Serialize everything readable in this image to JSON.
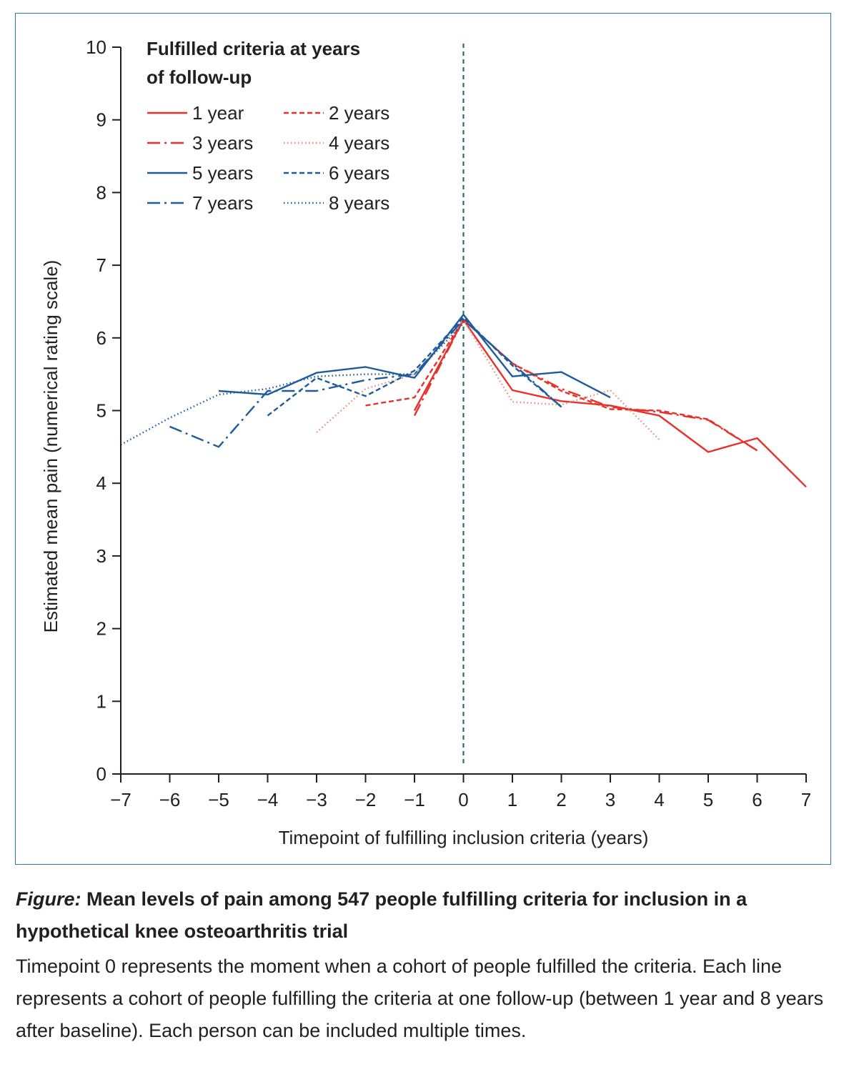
{
  "chart_data": {
    "type": "line",
    "ylabel": "Estimated mean pain (numerical rating scale)",
    "xlabel": "Timepoint of fulfilling inclusion criteria (years)",
    "xlim": [
      -7,
      7
    ],
    "ylim": [
      0,
      10
    ],
    "x_ticks": [
      "−7",
      "−6",
      "−5",
      "−4",
      "−3",
      "−2",
      "−1",
      "0",
      "1",
      "2",
      "3",
      "4",
      "5",
      "6",
      "7"
    ],
    "y_ticks": [
      "0",
      "1",
      "2",
      "3",
      "4",
      "5",
      "6",
      "7",
      "8",
      "9",
      "10"
    ],
    "reference_line": {
      "x": 0,
      "color": "#2d6a73"
    },
    "legend": {
      "title": "Fulfilled criteria at years of follow-up",
      "title_line1": "Fulfilled criteria at years",
      "title_line2": "of follow-up",
      "position": "top-left"
    },
    "series": [
      {
        "name": "1 year",
        "color": "#e8312a",
        "style": "solid",
        "points": [
          [
            -1,
            5.0
          ],
          [
            0,
            6.25
          ],
          [
            1,
            5.28
          ],
          [
            2,
            5.13
          ],
          [
            3,
            5.07
          ],
          [
            4,
            4.93
          ],
          [
            5,
            4.43
          ],
          [
            6,
            4.62
          ],
          [
            7,
            3.95
          ]
        ]
      },
      {
        "name": "2 years",
        "color": "#e8312a",
        "style": "dashed",
        "points": [
          [
            -2,
            5.07
          ],
          [
            -1,
            5.18
          ],
          [
            0,
            6.25
          ],
          [
            1,
            5.65
          ],
          [
            2,
            5.27
          ],
          [
            3,
            5.02
          ],
          [
            4,
            5.0
          ],
          [
            5,
            4.88
          ],
          [
            6,
            4.45
          ]
        ]
      },
      {
        "name": "3 years",
        "color": "#e8312a",
        "style": "dashdot",
        "points": [
          [
            -1,
            4.93
          ],
          [
            0,
            6.25
          ],
          [
            1,
            5.65
          ],
          [
            2,
            5.3
          ],
          [
            3,
            5.05
          ],
          [
            4,
            4.98
          ],
          [
            5,
            4.87
          ],
          [
            6,
            4.45
          ]
        ]
      },
      {
        "name": "4 years",
        "color": "#f08878",
        "style": "dotted",
        "points": [
          [
            -3,
            4.7
          ],
          [
            -2,
            5.3
          ],
          [
            -1,
            5.5
          ],
          [
            0,
            6.25
          ],
          [
            1,
            5.12
          ],
          [
            2,
            5.08
          ],
          [
            3,
            5.28
          ],
          [
            4,
            4.6
          ]
        ]
      },
      {
        "name": "5 years",
        "color": "#1d5b9a",
        "style": "solid",
        "points": [
          [
            -5,
            5.27
          ],
          [
            -4,
            5.22
          ],
          [
            -3,
            5.52
          ],
          [
            -2,
            5.6
          ],
          [
            -1,
            5.45
          ],
          [
            0,
            6.32
          ],
          [
            1,
            5.47
          ],
          [
            2,
            5.53
          ],
          [
            3,
            5.18
          ]
        ]
      },
      {
        "name": "6 years",
        "color": "#1d5b9a",
        "style": "dashed",
        "points": [
          [
            -4,
            4.93
          ],
          [
            -3,
            5.45
          ],
          [
            -2,
            5.2
          ],
          [
            -1,
            5.55
          ],
          [
            0,
            6.28
          ],
          [
            1,
            5.62
          ],
          [
            2,
            5.05
          ]
        ]
      },
      {
        "name": "7 years",
        "color": "#1d5b9a",
        "style": "dashdot",
        "points": [
          [
            -6,
            4.78
          ],
          [
            -5,
            4.5
          ],
          [
            -4,
            5.27
          ],
          [
            -3,
            5.27
          ],
          [
            -2,
            5.42
          ],
          [
            -1,
            5.5
          ],
          [
            0,
            6.25
          ],
          [
            1,
            5.65
          ],
          [
            2,
            5.05
          ]
        ]
      },
      {
        "name": "8 years",
        "color": "#1d5b9a",
        "style": "dotted",
        "points": [
          [
            -7,
            4.53
          ],
          [
            -6,
            4.9
          ],
          [
            -5,
            5.22
          ],
          [
            -4,
            5.3
          ],
          [
            -3,
            5.47
          ],
          [
            -2,
            5.5
          ],
          [
            -1,
            5.5
          ],
          [
            0,
            6.2
          ]
        ]
      }
    ]
  },
  "caption": {
    "lead": "Figure:",
    "title": " Mean levels of pain among 547 people fulfilling criteria for inclusion in a hypothetical knee osteoarthritis trial",
    "body": "Timepoint 0 represents the moment when a cohort of people fulfilled the criteria. Each line represents a cohort of people fulfilling the criteria at one follow-up (between 1 year and 8 years after baseline). Each person can be included multiple times."
  }
}
